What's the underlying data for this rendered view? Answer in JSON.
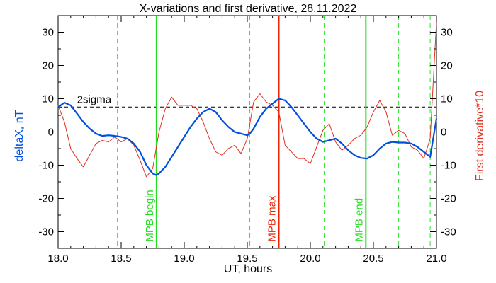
{
  "chart_data": {
    "type": "line",
    "title": "X-variations and first derivative, 28.11.2022",
    "xlabel": "UT, hours",
    "ylabel_left": "deltaX, nT",
    "ylabel_right": "First derivative*10",
    "xlim": [
      18.0,
      21.0
    ],
    "ylim": [
      -35,
      35
    ],
    "x_ticks": [
      "18.0",
      "18.5",
      "19.0",
      "19.5",
      "20.0",
      "20.5",
      "21.0"
    ],
    "y_ticks": [
      "30",
      "20",
      "10",
      "0",
      "-10",
      "-20",
      "-30"
    ],
    "threshold": {
      "name": "2sigma",
      "value": 7.5
    },
    "series": [
      {
        "name": "deltaX",
        "color": "#0050e0",
        "x": [
          18.0,
          18.05,
          18.1,
          18.15,
          18.2,
          18.25,
          18.3,
          18.35,
          18.4,
          18.45,
          18.5,
          18.55,
          18.6,
          18.65,
          18.7,
          18.75,
          18.78,
          18.8,
          18.85,
          18.9,
          18.95,
          19.0,
          19.05,
          19.1,
          19.15,
          19.2,
          19.25,
          19.3,
          19.35,
          19.4,
          19.45,
          19.5,
          19.52,
          19.55,
          19.6,
          19.65,
          19.7,
          19.75,
          19.8,
          19.85,
          19.9,
          19.95,
          20.0,
          20.05,
          20.1,
          20.15,
          20.2,
          20.25,
          20.3,
          20.35,
          20.4,
          20.45,
          20.5,
          20.55,
          20.6,
          20.65,
          20.7,
          20.75,
          20.8,
          20.85,
          20.9,
          20.95,
          21.0
        ],
        "y": [
          7.5,
          8.8,
          8.0,
          5.5,
          3.0,
          1.0,
          -0.5,
          -1.2,
          -1.0,
          -1.2,
          -1.5,
          -2.0,
          -3.5,
          -6.0,
          -10.0,
          -12.5,
          -13.0,
          -12.5,
          -10.5,
          -7.5,
          -4.5,
          -1.5,
          1.5,
          4.0,
          6.0,
          7.0,
          6.0,
          3.5,
          1.5,
          0.0,
          -0.5,
          -1.0,
          -0.5,
          1.0,
          4.5,
          7.0,
          8.5,
          10.0,
          9.5,
          7.5,
          5.0,
          2.5,
          0.0,
          -2.0,
          -3.0,
          -2.5,
          -2.0,
          -3.5,
          -5.5,
          -7.0,
          -7.8,
          -8.0,
          -7.0,
          -5.0,
          -3.5,
          -3.0,
          -3.2,
          -3.2,
          -3.5,
          -4.5,
          -6.0,
          -7.5,
          4.0
        ]
      },
      {
        "name": "First derivative*10",
        "color": "#e03020",
        "x": [
          18.0,
          18.05,
          18.1,
          18.15,
          18.2,
          18.25,
          18.3,
          18.35,
          18.4,
          18.45,
          18.5,
          18.55,
          18.6,
          18.65,
          18.7,
          18.75,
          18.8,
          18.85,
          18.9,
          18.95,
          19.0,
          19.05,
          19.1,
          19.15,
          19.2,
          19.25,
          19.3,
          19.35,
          19.4,
          19.45,
          19.5,
          19.55,
          19.6,
          19.65,
          19.7,
          19.75,
          19.8,
          19.85,
          19.9,
          19.95,
          20.0,
          20.05,
          20.1,
          20.15,
          20.2,
          20.25,
          20.3,
          20.35,
          20.4,
          20.45,
          20.5,
          20.55,
          20.6,
          20.65,
          20.7,
          20.75,
          20.8,
          20.85,
          20.9,
          20.95,
          21.0
        ],
        "y": [
          8.0,
          3.0,
          -5.0,
          -8.0,
          -10.5,
          -7.0,
          -3.5,
          -2.5,
          -3.0,
          -1.5,
          -3.0,
          -2.0,
          -4.0,
          -8.5,
          -13.5,
          -11.0,
          0.0,
          7.0,
          10.5,
          8.0,
          8.0,
          8.0,
          7.0,
          3.0,
          -2.0,
          -6.0,
          -7.0,
          -5.0,
          -4.0,
          -6.5,
          -2.0,
          9.0,
          11.5,
          9.0,
          8.0,
          6.0,
          -4.0,
          -6.0,
          -8.0,
          -8.0,
          -9.5,
          -4.5,
          0.5,
          2.5,
          -3.0,
          -5.5,
          -4.0,
          -2.0,
          -1.0,
          1.5,
          6.0,
          9.5,
          6.0,
          -1.0,
          0.5,
          -0.5,
          -4.5,
          -5.5,
          -8.0,
          -2.0,
          33.0
        ]
      }
    ],
    "markers": [
      {
        "x": 18.47,
        "style": "dashed",
        "color": "#33dd33",
        "label": ""
      },
      {
        "x": 18.78,
        "style": "solid",
        "color": "#22dd22",
        "label": "MPB begin"
      },
      {
        "x": 19.52,
        "style": "dashed",
        "color": "#33dd33",
        "label": ""
      },
      {
        "x": 19.75,
        "style": "solid",
        "color": "#ee2200",
        "label": "MPB max"
      },
      {
        "x": 20.11,
        "style": "dashed",
        "color": "#33dd33",
        "label": ""
      },
      {
        "x": 20.44,
        "style": "solid",
        "color": "#22dd22",
        "label": "MPB end"
      },
      {
        "x": 20.7,
        "style": "dashed",
        "color": "#33dd33",
        "label": ""
      },
      {
        "x": 20.95,
        "style": "dashed",
        "color": "#33dd33",
        "label": ""
      }
    ],
    "colors": {
      "left_axis_label": "#0050e0",
      "right_axis_label": "#e03020"
    },
    "grid": false
  }
}
